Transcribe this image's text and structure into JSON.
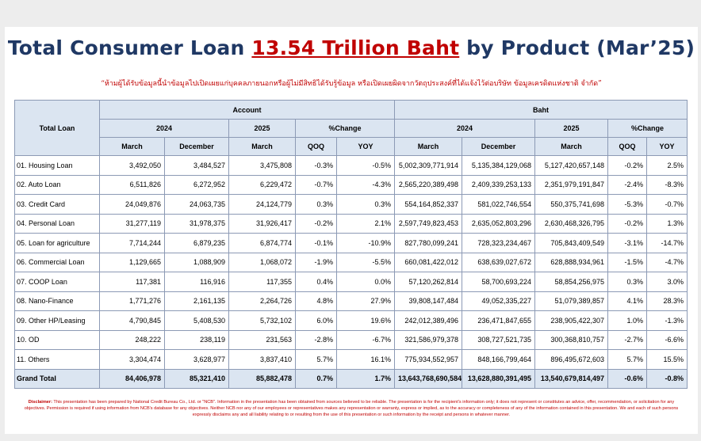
{
  "title": {
    "prefix": "Total Consumer Loan ",
    "highlight": "13.54 Trillion Baht",
    "suffix": " by Product (Mar’25)"
  },
  "subtitle": "“ห้ามผู้ได้รับข้อมูลนี้นำข้อมูลไปเปิดเผยแก่บุคคลภายนอกหรือผู้ไม่มีสิทธิได้รับรู้ข้อมูล หรือเปิดเผยผิดจากวัตถุประสงค์ที่ได้แจ้งไว้ต่อบริษัท ข้อมูลเครดิตแห่งชาติ จำกัด”",
  "table": {
    "row_header": "Total Loan",
    "group_account": "Account",
    "group_baht": "Baht",
    "year_2024": "2024",
    "year_2025": "2025",
    "pct_change": "%Change",
    "sub_headers": [
      "March",
      "December",
      "March",
      "QOQ",
      "YOY",
      "March",
      "December",
      "March",
      "QOQ",
      "YOY"
    ],
    "rows": [
      {
        "label": "01. Housing Loan",
        "values": [
          "3,492,050",
          "3,484,527",
          "3,475,808",
          "-0.3%",
          "-0.5%",
          "5,002,309,771,914",
          "5,135,384,129,068",
          "5,127,420,657,148",
          "-0.2%",
          "2.5%"
        ]
      },
      {
        "label": "02. Auto Loan",
        "values": [
          "6,511,826",
          "6,272,952",
          "6,229,472",
          "-0.7%",
          "-4.3%",
          "2,565,220,389,498",
          "2,409,339,253,133",
          "2,351,979,191,847",
          "-2.4%",
          "-8.3%"
        ]
      },
      {
        "label": "03. Credit Card",
        "values": [
          "24,049,876",
          "24,063,735",
          "24,124,779",
          "0.3%",
          "0.3%",
          "554,164,852,337",
          "581,022,746,554",
          "550,375,741,698",
          "-5.3%",
          "-0.7%"
        ]
      },
      {
        "label": "04. Personal Loan",
        "values": [
          "31,277,119",
          "31,978,375",
          "31,926,417",
          "-0.2%",
          "2.1%",
          "2,597,749,823,453",
          "2,635,052,803,296",
          "2,630,468,326,795",
          "-0.2%",
          "1.3%"
        ]
      },
      {
        "label": "05. Loan for agriculture",
        "values": [
          "7,714,244",
          "6,879,235",
          "6,874,774",
          "-0.1%",
          "-10.9%",
          "827,780,099,241",
          "728,323,234,467",
          "705,843,409,549",
          "-3.1%",
          "-14.7%"
        ]
      },
      {
        "label": "06. Commercial Loan",
        "values": [
          "1,129,665",
          "1,088,909",
          "1,068,072",
          "-1.9%",
          "-5.5%",
          "660,081,422,012",
          "638,639,027,672",
          "628,888,934,961",
          "-1.5%",
          "-4.7%"
        ]
      },
      {
        "label": "07. COOP Loan",
        "values": [
          "117,381",
          "116,916",
          "117,355",
          "0.4%",
          "0.0%",
          "57,120,262,814",
          "58,700,693,224",
          "58,854,256,975",
          "0.3%",
          "3.0%"
        ]
      },
      {
        "label": "08. Nano-Finance",
        "values": [
          "1,771,276",
          "2,161,135",
          "2,264,726",
          "4.8%",
          "27.9%",
          "39,808,147,484",
          "49,052,335,227",
          "51,079,389,857",
          "4.1%",
          "28.3%"
        ]
      },
      {
        "label": "09. Other HP/Leasing",
        "values": [
          "4,790,845",
          "5,408,530",
          "5,732,102",
          "6.0%",
          "19.6%",
          "242,012,389,496",
          "236,471,847,655",
          "238,905,422,307",
          "1.0%",
          "-1.3%"
        ]
      },
      {
        "label": "10. OD",
        "values": [
          "248,222",
          "238,119",
          "231,563",
          "-2.8%",
          "-6.7%",
          "321,586,979,378",
          "308,727,521,735",
          "300,368,810,757",
          "-2.7%",
          "-6.6%"
        ]
      },
      {
        "label": "11. Others",
        "values": [
          "3,304,474",
          "3,628,977",
          "3,837,410",
          "5.7%",
          "16.1%",
          "775,934,552,957",
          "848,166,799,464",
          "896,495,672,603",
          "5.7%",
          "15.5%"
        ]
      }
    ],
    "total": {
      "label": "Grand Total",
      "values": [
        "84,406,978",
        "85,321,410",
        "85,882,478",
        "0.7%",
        "1.7%",
        "13,643,768,690,584",
        "13,628,880,391,495",
        "13,540,679,814,497",
        "-0.6%",
        "-0.8%"
      ]
    }
  },
  "disclaimer": {
    "label": "Disclaimer:",
    "text": " This presentation has been prepared by National Credit Bureau Co., Ltd. or \"NCB\". Information in the presentation has been obtained from sources believed to be reliable. The presentation is for the recipient's information only; it does not represent or constitutes an advice, offer, recommendation, or solicitation for any objectives. Permission is required if using information from NCB's database for any objectives. Neither NCB nor any of our employees or representatives makes any representation or warranty, express or implied, as to the accuracy or completeness of any of the information contained in this presentation. We and each of such persons expressly disclaims any and all liability relating to or resulting from the use of this presentation or such information by the receipt and persons in whatever manner."
  }
}
